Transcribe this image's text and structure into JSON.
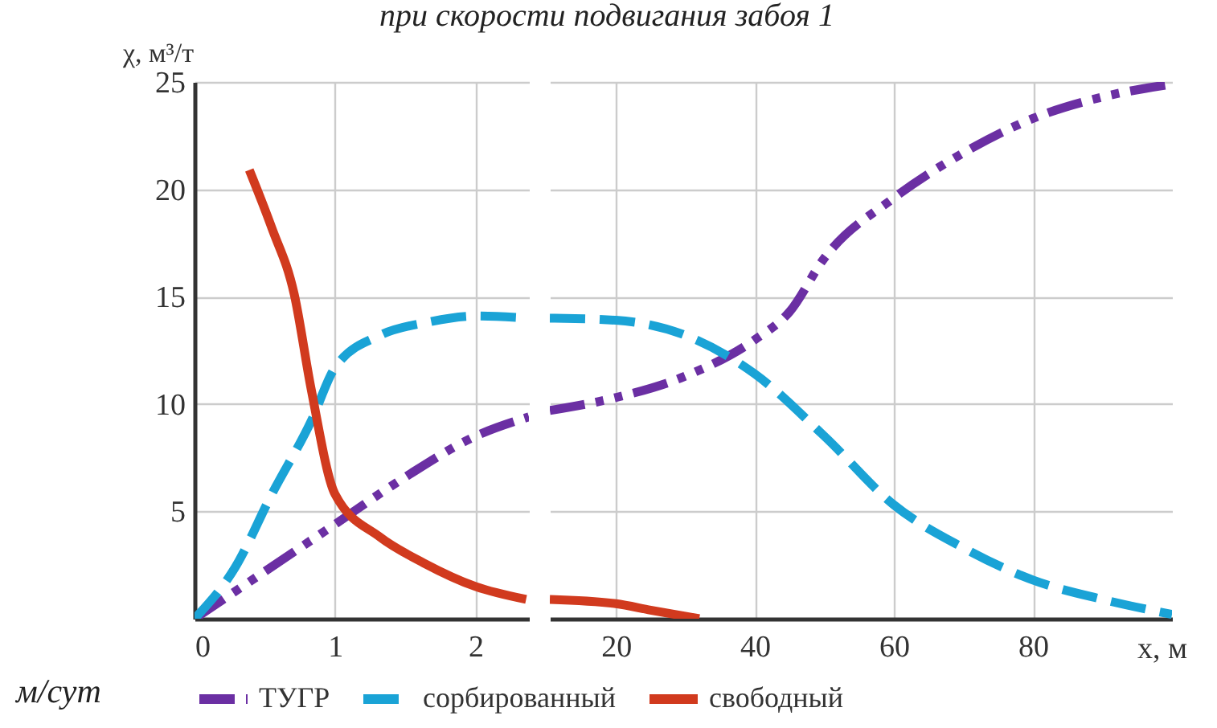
{
  "chart_data": [
    {
      "type": "line",
      "title": "при скорости подвигания забоя 1",
      "ylabel": "χ, м³/т",
      "annotations": [
        "м/сут"
      ],
      "xlim": [
        0,
        2.38
      ],
      "xticks": [
        0,
        1,
        2
      ],
      "ylim": [
        0,
        25
      ],
      "yticks": [
        5,
        10,
        15,
        20,
        25
      ],
      "grid": true,
      "legend": "bottom",
      "series": [
        {
          "name": "ТУГР",
          "color": "#6b2fa3",
          "line_style": "dashdot",
          "x": [
            0,
            0.5,
            1,
            1.5,
            2,
            2.38
          ],
          "values": [
            0,
            2.2,
            4.4,
            6.6,
            8.5,
            9.4
          ]
        },
        {
          "name": "сорбированный",
          "color": "#1aa3d6",
          "line_style": "dashed",
          "x": [
            0,
            0.29,
            0.55,
            0.83,
            1,
            1.32,
            1.65,
            2,
            2.38
          ],
          "values": [
            0,
            2.4,
            5.8,
            9.2,
            11.7,
            13.2,
            13.8,
            14.1,
            14.0
          ]
        },
        {
          "name": "свободный",
          "color": "#d13a1e",
          "line_style": "solid",
          "x": [
            0.39,
            0.55,
            0.71,
            0.83,
            1,
            1.32,
            1.63,
            2,
            2.36
          ],
          "values": [
            20.9,
            18.2,
            15.1,
            10.7,
            5.8,
            3.8,
            2.6,
            1.5,
            0.9
          ]
        }
      ]
    },
    {
      "type": "line",
      "xlabel": "x, м",
      "xlim": [
        10.5,
        100
      ],
      "xticks": [
        20,
        40,
        60,
        80
      ],
      "ylim": [
        0,
        25
      ],
      "yticks": [
        5,
        10,
        15,
        20,
        25
      ],
      "grid": true,
      "tick_labels": "x",
      "series": [
        {
          "color": "#6b2fa3",
          "line_style": "dashdot",
          "x": [
            10.5,
            20,
            30,
            40,
            45,
            50,
            60,
            70,
            80,
            90,
            100
          ],
          "values": [
            9.7,
            10.3,
            11.3,
            13.0,
            14.3,
            16.8,
            19.6,
            21.7,
            23.3,
            24.3,
            24.9
          ]
        },
        {
          "color": "#1aa3d6",
          "line_style": "dashed",
          "x": [
            10.5,
            20,
            30,
            40,
            50,
            60,
            70,
            80,
            90,
            100
          ],
          "values": [
            14.0,
            13.9,
            13.2,
            11.4,
            8.5,
            5.3,
            3.3,
            1.8,
            0.9,
            0.2
          ]
        },
        {
          "color": "#d13a1e",
          "line_style": "solid",
          "x": [
            10.5,
            20,
            25,
            32
          ],
          "values": [
            0.9,
            0.7,
            0.4,
            0
          ]
        }
      ]
    }
  ]
}
